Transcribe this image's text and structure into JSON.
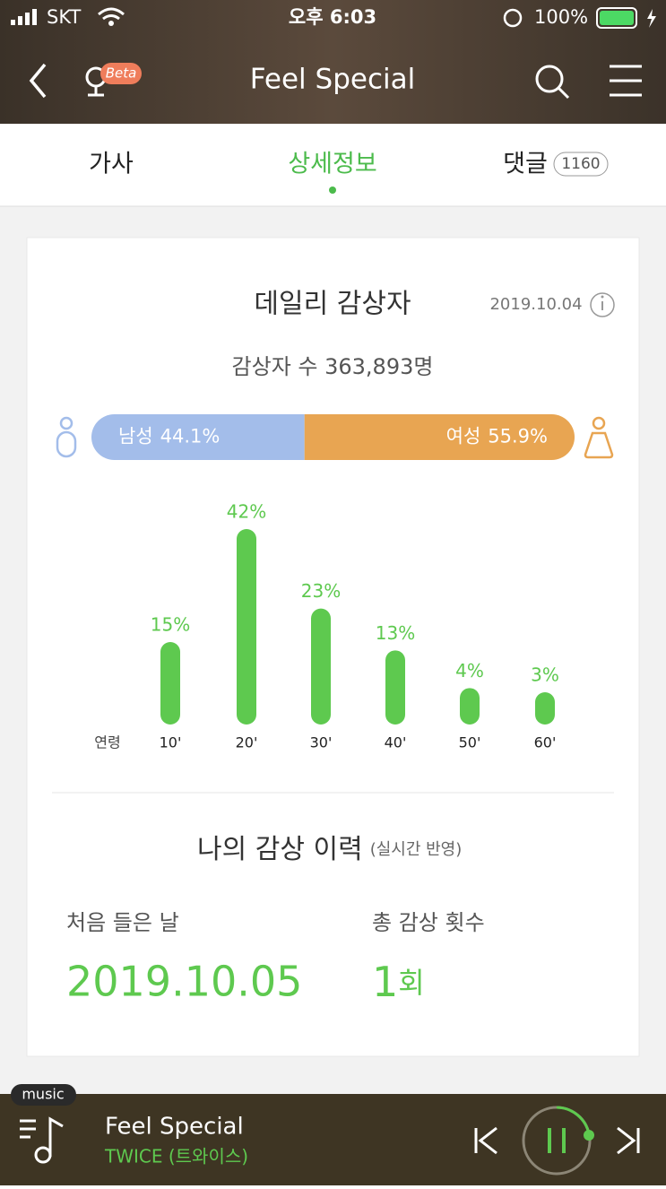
{
  "status_bar": {
    "carrier": "SKT",
    "time": "오후 6:03",
    "battery": "100%"
  },
  "header": {
    "title": "Feel Special",
    "badge": "Beta"
  },
  "tabs": [
    "가사",
    "상세정보",
    "댓글"
  ],
  "comment_count": "1160",
  "daily": {
    "title": "데일리 감상자",
    "date": "2019.10.04",
    "listeners": "감상자 수 363,893명",
    "gender": [
      {
        "name": "남성",
        "value": 44.1,
        "value_label": "44.1%",
        "color": "#a3bdea"
      },
      {
        "name": "여성",
        "value": 55.9,
        "value_label": "55.9%",
        "color": "#e8a552"
      }
    ]
  },
  "chart_data": {
    "type": "bar",
    "x_label": "연령",
    "categories": [
      "10'",
      "20'",
      "30'",
      "40'",
      "50'",
      "60'"
    ],
    "values": [
      15,
      42,
      23,
      13,
      4,
      3
    ],
    "value_labels": [
      "15%",
      "42%",
      "23%",
      "13%",
      "4%",
      "3%"
    ],
    "color": "#5ec94f"
  },
  "history": {
    "title": "나의 감상 이력",
    "note": "(실시간 반영)",
    "first_label": "처음 들은 날",
    "first_date": "2019.10.05",
    "count_label": "총 감상 횟수",
    "count_value": "1",
    "count_unit": "회"
  },
  "player": {
    "badge": "music",
    "title": "Feel Special",
    "artist": "TWICE (트와이스)"
  }
}
